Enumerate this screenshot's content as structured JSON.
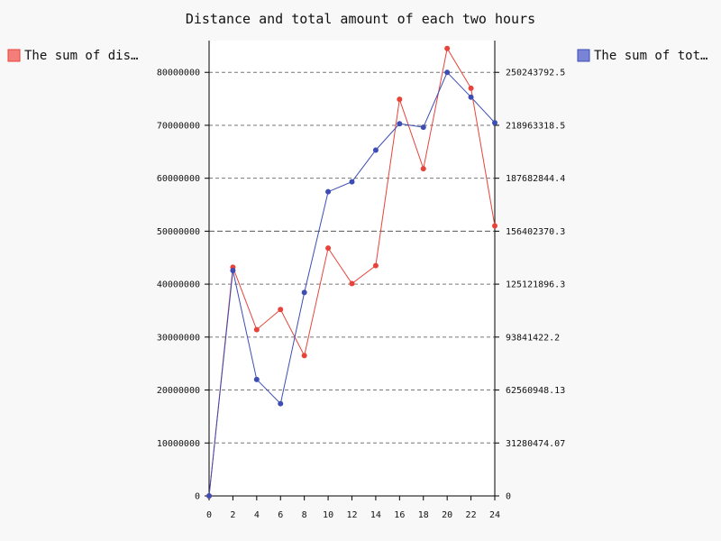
{
  "chart_data": {
    "type": "line",
    "title": "Distance and total amount of each two hours",
    "x": [
      0,
      2,
      4,
      6,
      8,
      10,
      12,
      14,
      16,
      18,
      20,
      22,
      24
    ],
    "x_ticks": [
      "0",
      "2",
      "4",
      "6",
      "8",
      "10",
      "12",
      "14",
      "16",
      "18",
      "20",
      "22",
      "24"
    ],
    "y_left": {
      "range": [
        0,
        86000000
      ],
      "ticks": [
        0,
        10000000,
        20000000,
        30000000,
        40000000,
        50000000,
        60000000,
        70000000,
        80000000
      ],
      "tick_labels": [
        "0",
        "10000000",
        "20000000",
        "30000000",
        "40000000",
        "50000000",
        "60000000",
        "70000000",
        "80000000"
      ]
    },
    "y_right": {
      "range": [
        0,
        269009677
      ],
      "ticks": [
        0,
        31280474.07,
        62560948.13,
        93841422.2,
        125121896.3,
        156402370.3,
        187682844.4,
        218963318.5,
        250243792.5
      ],
      "tick_labels": [
        "0",
        "31280474.07",
        "62560948.13",
        "93841422.2",
        "125121896.3",
        "156402370.3",
        "187682844.4",
        "218963318.5",
        "250243792.5"
      ]
    },
    "grid": true,
    "series": [
      {
        "name": "The sum of dis…",
        "axis": "left",
        "color": "#e8433a",
        "legend_color": "#f47f7a",
        "values": [
          0,
          43200000,
          31400000,
          35200000,
          26500000,
          46800000,
          40100000,
          43500000,
          74900000,
          61800000,
          84500000,
          77000000,
          51000000
        ]
      },
      {
        "name": "The sum of tot…",
        "axis": "right",
        "color": "#3d4db4",
        "legend_color": "#7a84d6",
        "values": [
          0,
          133200000,
          68800000,
          54500000,
          120200000,
          179700000,
          185600000,
          204300000,
          219900000,
          217800000,
          250200000,
          235600000,
          220500000
        ]
      }
    ],
    "legend": [
      "top-left",
      "top-right"
    ]
  }
}
